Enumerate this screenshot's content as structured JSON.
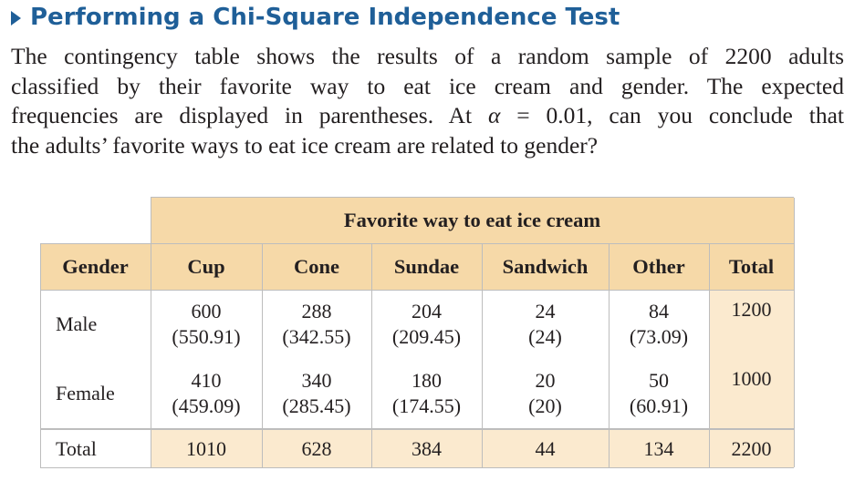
{
  "heading": "Performing a Chi-Square Independence Test",
  "paragraph_lines": [
    "The contingency table shows the results of a random sample of 2200 adults",
    "classified by their favorite way to eat ice cream and gender. The expected",
    "frequencies are displayed in parentheses. At",
    "the adults’ favorite ways to eat ice cream are related to gender?"
  ],
  "paragraph_alpha_symbol": "α",
  "paragraph_alpha_rest": " = 0.01, can you conclude that",
  "table": {
    "group_header": "Favorite way to eat ice cream",
    "row_header": "Gender",
    "columns": [
      "Cup",
      "Cone",
      "Sundae",
      "Sandwich",
      "Other",
      "Total"
    ],
    "rows": [
      {
        "label": "Male",
        "observed": [
          "600",
          "288",
          "204",
          "24",
          "84"
        ],
        "expected": [
          "(550.91)",
          "(342.55)",
          "(209.45)",
          "(24)",
          "(73.09)"
        ],
        "total": "1200"
      },
      {
        "label": "Female",
        "observed": [
          "410",
          "340",
          "180",
          "20",
          "50"
        ],
        "expected": [
          "(459.09)",
          "(285.45)",
          "(174.55)",
          "(20)",
          "(60.91)"
        ],
        "total": "1000"
      }
    ],
    "total_row": {
      "label": "Total",
      "values": [
        "1010",
        "628",
        "384",
        "44",
        "134"
      ],
      "grand_total": "2200"
    }
  }
}
